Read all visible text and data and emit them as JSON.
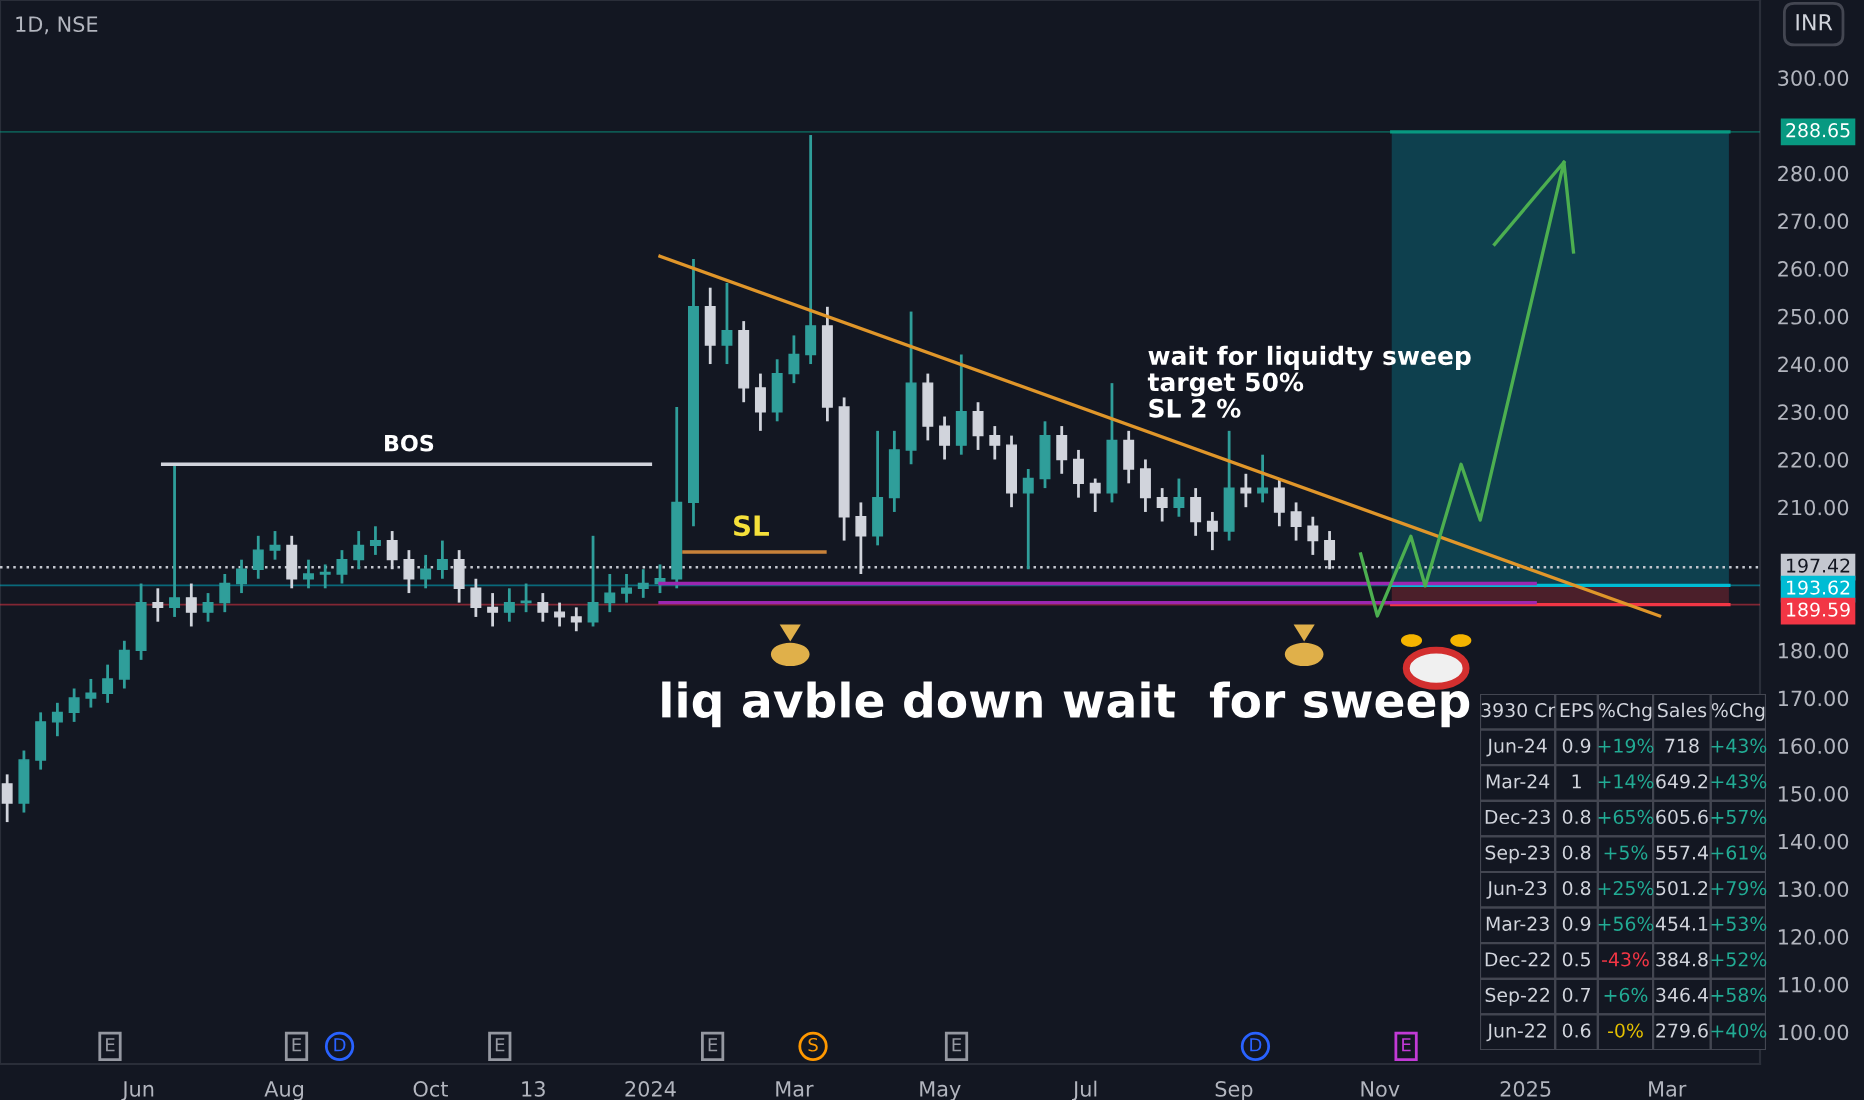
{
  "chart_data": [
    {
      "type": "candlestick",
      "title": "1D, NSE",
      "x": [
        "2023-04-07",
        "2023-04-14",
        "2023-04-21",
        "2023-04-28",
        "2023-05-05",
        "2023-05-12",
        "2023-05-19",
        "2023-05-26",
        "2023-06-02",
        "2023-06-09",
        "2023-06-16",
        "2023-06-23",
        "2023-06-30",
        "2023-07-07",
        "2023-07-14",
        "2023-07-21",
        "2023-07-28",
        "2023-08-04",
        "2023-08-11",
        "2023-08-18",
        "2023-08-25",
        "2023-09-01",
        "2023-09-08",
        "2023-09-15",
        "2023-09-22",
        "2023-09-29",
        "2023-10-06",
        "2023-10-13",
        "2023-10-20",
        "2023-10-27",
        "2023-11-03",
        "2023-11-10",
        "2023-11-17",
        "2023-11-24",
        "2023-12-01",
        "2023-12-08",
        "2023-12-15",
        "2023-12-22",
        "2023-12-29",
        "2024-01-05",
        "2024-01-12",
        "2024-01-19",
        "2024-01-26",
        "2024-02-02",
        "2024-02-09",
        "2024-02-16",
        "2024-02-23",
        "2024-03-01",
        "2024-03-08",
        "2024-03-15",
        "2024-03-22",
        "2024-03-29",
        "2024-04-05",
        "2024-04-12",
        "2024-04-19",
        "2024-04-26",
        "2024-05-03",
        "2024-05-10",
        "2024-05-17",
        "2024-05-24",
        "2024-05-31",
        "2024-06-07",
        "2024-06-14",
        "2024-06-21",
        "2024-06-28",
        "2024-07-05",
        "2024-07-12",
        "2024-07-19",
        "2024-07-26",
        "2024-08-02",
        "2024-08-09",
        "2024-08-16",
        "2024-08-23",
        "2024-08-30",
        "2024-09-06",
        "2024-09-13",
        "2024-09-20",
        "2024-09-27",
        "2024-10-04",
        "2024-10-11"
      ],
      "ohlc": [
        [
          152,
          154,
          144,
          148
        ],
        [
          148,
          159,
          146,
          157
        ],
        [
          157,
          167,
          155,
          165
        ],
        [
          165,
          169,
          162,
          167
        ],
        [
          167,
          172,
          165,
          170
        ],
        [
          170,
          174,
          168,
          171
        ],
        [
          171,
          177,
          169,
          174
        ],
        [
          174,
          182,
          172,
          180
        ],
        [
          180,
          194,
          178,
          190
        ],
        [
          190,
          193,
          186,
          189
        ],
        [
          189,
          219,
          187,
          191
        ],
        [
          191,
          194,
          185,
          188
        ],
        [
          188,
          192,
          186,
          190
        ],
        [
          190,
          196,
          188,
          194
        ],
        [
          194,
          199,
          192,
          197
        ],
        [
          197,
          204,
          195,
          201
        ],
        [
          201,
          205,
          199,
          202
        ],
        [
          202,
          204,
          193,
          195
        ],
        [
          195,
          199,
          193,
          196
        ],
        [
          196,
          198,
          193,
          196
        ],
        [
          196,
          201,
          194,
          199
        ],
        [
          199,
          205,
          197,
          202
        ],
        [
          202,
          206,
          200,
          203
        ],
        [
          203,
          205,
          197,
          199
        ],
        [
          199,
          201,
          192,
          195
        ],
        [
          195,
          200,
          193,
          197
        ],
        [
          197,
          203,
          195,
          199
        ],
        [
          199,
          201,
          190,
          193
        ],
        [
          193,
          195,
          187,
          189
        ],
        [
          189,
          192,
          185,
          188
        ],
        [
          188,
          193,
          186,
          190
        ],
        [
          190,
          194,
          188,
          190
        ],
        [
          190,
          192,
          186,
          188
        ],
        [
          188,
          190,
          185,
          187
        ],
        [
          187,
          189,
          184,
          186
        ],
        [
          186,
          204,
          185,
          190
        ],
        [
          190,
          196,
          188,
          192
        ],
        [
          192,
          196,
          190,
          193
        ],
        [
          193,
          197,
          191,
          194
        ],
        [
          194,
          198,
          192,
          195
        ],
        [
          195,
          231,
          193,
          211
        ],
        [
          211,
          262,
          206,
          252
        ],
        [
          252,
          256,
          240,
          244
        ],
        [
          244,
          257,
          240,
          247
        ],
        [
          247,
          249,
          232,
          235
        ],
        [
          235,
          238,
          226,
          230
        ],
        [
          230,
          241,
          228,
          238
        ],
        [
          238,
          246,
          236,
          242
        ],
        [
          242,
          288,
          240,
          248
        ],
        [
          248,
          252,
          228,
          231
        ],
        [
          231,
          233,
          203,
          208
        ],
        [
          208,
          211,
          196,
          204
        ],
        [
          204,
          226,
          202,
          212
        ],
        [
          212,
          226,
          209,
          222
        ],
        [
          222,
          251,
          219,
          236
        ],
        [
          236,
          238,
          224,
          227
        ],
        [
          227,
          229,
          220,
          223
        ],
        [
          223,
          242,
          221,
          230
        ],
        [
          230,
          232,
          222,
          225
        ],
        [
          225,
          227,
          220,
          223
        ],
        [
          223,
          225,
          210,
          213
        ],
        [
          213,
          218,
          197,
          216
        ],
        [
          216,
          228,
          214,
          225
        ],
        [
          225,
          227,
          217,
          220
        ],
        [
          220,
          222,
          212,
          215
        ],
        [
          215,
          216,
          209,
          213
        ],
        [
          213,
          236,
          211,
          224
        ],
        [
          224,
          226,
          215,
          218
        ],
        [
          218,
          220,
          209,
          212
        ],
        [
          212,
          214,
          207,
          210
        ],
        [
          210,
          216,
          208,
          212
        ],
        [
          212,
          214,
          204,
          207
        ],
        [
          207,
          209,
          201,
          205
        ],
        [
          205,
          226,
          203,
          214
        ],
        [
          214,
          217,
          210,
          213
        ],
        [
          213,
          221,
          211,
          214
        ],
        [
          214,
          216,
          206,
          209
        ],
        [
          209,
          211,
          203,
          206
        ],
        [
          206,
          208,
          200,
          203
        ],
        [
          203,
          205,
          197,
          199
        ]
      ],
      "colors": [
        "#d1d4dc",
        "#2f9e9a",
        "#2f9e9a",
        "#2f9e9a",
        "#2f9e9a",
        "#2f9e9a",
        "#2f9e9a",
        "#2f9e9a",
        "#2f9e9a",
        "#d1d4dc",
        "#2f9e9a",
        "#d1d4dc",
        "#2f9e9a",
        "#2f9e9a",
        "#2f9e9a",
        "#2f9e9a",
        "#2f9e9a",
        "#d1d4dc",
        "#2f9e9a",
        "#2f9e9a",
        "#2f9e9a",
        "#2f9e9a",
        "#2f9e9a",
        "#d1d4dc",
        "#d1d4dc",
        "#2f9e9a",
        "#2f9e9a",
        "#d1d4dc",
        "#d1d4dc",
        "#d1d4dc",
        "#2f9e9a",
        "#2f9e9a",
        "#d1d4dc",
        "#d1d4dc",
        "#d1d4dc",
        "#2f9e9a",
        "#2f9e9a",
        "#2f9e9a",
        "#2f9e9a",
        "#2f9e9a",
        "#2f9e9a",
        "#2f9e9a",
        "#d1d4dc",
        "#2f9e9a",
        "#d1d4dc",
        "#d1d4dc",
        "#2f9e9a",
        "#2f9e9a",
        "#2f9e9a",
        "#d1d4dc",
        "#d1d4dc",
        "#d1d4dc",
        "#2f9e9a",
        "#2f9e9a",
        "#2f9e9a",
        "#d1d4dc",
        "#d1d4dc",
        "#2f9e9a",
        "#d1d4dc",
        "#d1d4dc",
        "#d1d4dc",
        "#2f9e9a",
        "#2f9e9a",
        "#d1d4dc",
        "#d1d4dc",
        "#d1d4dc",
        "#2f9e9a",
        "#d1d4dc",
        "#d1d4dc",
        "#d1d4dc",
        "#2f9e9a",
        "#d1d4dc",
        "#d1d4dc",
        "#2f9e9a",
        "#d1d4dc",
        "#2f9e9a",
        "#d1d4dc",
        "#d1d4dc",
        "#d1d4dc",
        "#d1d4dc"
      ],
      "series": [
        {
          "type": "line",
          "x": [
            "2024-11-06",
            "2025-03-27"
          ],
          "values": [
            288.65,
            288.65
          ],
          "color": "#089981"
        },
        {
          "type": "line",
          "x": [
            "2024-11-06",
            "2025-03-27"
          ],
          "values": [
            193.62,
            193.62
          ],
          "color": "#00bcd4"
        },
        {
          "type": "line",
          "x": [
            "2024-11-06",
            "2025-03-27"
          ],
          "values": [
            189.59,
            189.59
          ],
          "color": "#f23645"
        },
        {
          "type": "line",
          "x": [
            "2024-01-05",
            "2025-01-05"
          ],
          "values": [
            194,
            194
          ],
          "color": "#9c27b0"
        },
        {
          "type": "line",
          "x": [
            "2024-01-05",
            "2025-01-05"
          ],
          "values": [
            190,
            190
          ],
          "color": "#9c27b0"
        },
        {
          "type": "line",
          "x": [
            "2023-06-11",
            "2024-01-01"
          ],
          "values": [
            219,
            219
          ],
          "color": "#d1d4dc"
        },
        {
          "type": "line",
          "x": [
            "2024-01-15",
            "2024-03-14"
          ],
          "values": [
            200.6,
            200.6
          ],
          "color": "#c8823a"
        },
        {
          "type": "line",
          "x": [
            "2024-01-05",
            "2025-02-26"
          ],
          "values": [
            262.6,
            187.2
          ],
          "color": "#e0962a"
        },
        {
          "type": "line",
          "x": [
            "2024-10-24",
            "2024-10-31",
            "2024-11-14",
            "2024-11-20",
            "2024-12-05",
            "2024-12-13",
            "2025-01-17",
            "2025-01-21"
          ],
          "values": [
            200.2,
            187.2,
            203.9,
            193.5,
            219,
            207.3,
            282.3,
            263.5
          ],
          "color": "#4caf50"
        },
        {
          "type": "line",
          "x": [
            "2024-12-19",
            "2025-01-17"
          ],
          "values": [
            265.1,
            282.3
          ],
          "color": "#4caf50"
        }
      ],
      "xlim": [
        "2023-04-04",
        "2025-04-09"
      ],
      "xticks": [
        {
          "value": "2023-06-01",
          "label": "Jun"
        },
        {
          "value": "2023-08-01",
          "label": "Aug"
        },
        {
          "value": "2023-10-01",
          "label": "Oct"
        },
        {
          "value": "2023-11-13",
          "label": "13"
        },
        {
          "value": "2024-01-01",
          "label": "2024"
        },
        {
          "value": "2024-03-01",
          "label": "Mar"
        },
        {
          "value": "2024-05-01",
          "label": "May"
        },
        {
          "value": "2024-07-01",
          "label": "Jul"
        },
        {
          "value": "2024-09-01",
          "label": "Sep"
        },
        {
          "value": "2024-11-01",
          "label": "Nov"
        },
        {
          "value": "2025-01-01",
          "label": "2025"
        },
        {
          "value": "2025-03-01",
          "label": "Mar"
        }
      ],
      "ylim": [
        93.3,
        316.3
      ],
      "yticks": [
        {
          "value": 100,
          "label": "100.00"
        },
        {
          "value": 110,
          "label": "110.00"
        },
        {
          "value": 120,
          "label": "120.00"
        },
        {
          "value": 130,
          "label": "130.00"
        },
        {
          "value": 140,
          "label": "140.00"
        },
        {
          "value": 150,
          "label": "150.00"
        },
        {
          "value": 160,
          "label": "160.00"
        },
        {
          "value": 170,
          "label": "170.00"
        },
        {
          "value": 180,
          "label": "180.00"
        },
        {
          "value": 210,
          "label": "210.00"
        },
        {
          "value": 220,
          "label": "220.00"
        },
        {
          "value": 230,
          "label": "230.00"
        },
        {
          "value": 240,
          "label": "240.00"
        },
        {
          "value": 250,
          "label": "250.00"
        },
        {
          "value": 260,
          "label": "260.00"
        },
        {
          "value": 270,
          "label": "270.00"
        },
        {
          "value": 280,
          "label": "280.00"
        },
        {
          "value": 300,
          "label": "300.00"
        }
      ],
      "ref_lines": [
        {
          "axis": "y",
          "value": 288.65,
          "label": "288.65",
          "color": "#089981"
        },
        {
          "axis": "y",
          "value": 197.42,
          "label": "197.42",
          "color": "#c4c7cf",
          "line_style": "dotted"
        },
        {
          "axis": "y",
          "value": 193.62,
          "label": "193.62",
          "color": "#00bcd4"
        },
        {
          "axis": "y",
          "value": 189.59,
          "label": "189.59",
          "color": "#f23645"
        }
      ],
      "annotations": [
        {
          "text": "BOS",
          "x": "2023-09-22",
          "y": 219
        },
        {
          "text": "SL",
          "x": "2024-02-12",
          "y": 200.6
        },
        "wait for liquidty sweep\ntarget 50%\nSL 2 %",
        "liq avble down wait  for sweep",
        "INR",
        {
          "text": "E",
          "x": "2023-05-20",
          "y": 97
        },
        {
          "text": "E",
          "x": "2023-08-06",
          "y": 97
        },
        {
          "text": "D",
          "x": "2023-08-24",
          "y": 97
        },
        {
          "text": "E",
          "x": "2023-10-30",
          "y": 97
        },
        {
          "text": "E",
          "x": "2024-01-27",
          "y": 97
        },
        {
          "text": "S",
          "x": "2024-03-09",
          "y": 97
        },
        {
          "text": "E",
          "x": "2024-05-08",
          "y": 97
        },
        {
          "text": "D",
          "x": "2024-09-10",
          "y": 97
        },
        {
          "text": "E",
          "x": "2024-11-12",
          "y": 97
        }
      ]
    },
    {
      "type": "other",
      "categories": [
        "3930 Cr",
        "EPS",
        "%Chg",
        "Sales",
        "%Chg"
      ],
      "cell_labels": [
        [
          "Jun-24",
          "0.9",
          "+19%",
          "718",
          "+43%"
        ],
        [
          "Mar-24",
          "1",
          "+14%",
          "649.2",
          "+43%"
        ],
        [
          "Dec-23",
          "0.8",
          "+65%",
          "605.6",
          "+57%"
        ],
        [
          "Sep-23",
          "0.8",
          "+5%",
          "557.4",
          "+61%"
        ],
        [
          "Jun-23",
          "0.8",
          "+25%",
          "501.2",
          "+79%"
        ],
        [
          "Mar-23",
          "0.9",
          "+56%",
          "454.1",
          "+53%"
        ],
        [
          "Dec-22",
          "0.5",
          "-43%",
          "384.8",
          "+52%"
        ],
        [
          "Sep-22",
          "0.7",
          "+6%",
          "346.4",
          "+58%"
        ],
        [
          "Jun-22",
          "0.6",
          "-0%",
          "279.6",
          "+40%"
        ]
      ],
      "colors": [
        [
          "#d1d4dc",
          "#d1d4dc",
          "#22ab94",
          "#d1d4dc",
          "#22ab94"
        ],
        [
          "#d1d4dc",
          "#d1d4dc",
          "#22ab94",
          "#d1d4dc",
          "#22ab94"
        ],
        [
          "#d1d4dc",
          "#d1d4dc",
          "#22ab94",
          "#d1d4dc",
          "#22ab94"
        ],
        [
          "#d1d4dc",
          "#d1d4dc",
          "#22ab94",
          "#d1d4dc",
          "#22ab94"
        ],
        [
          "#d1d4dc",
          "#d1d4dc",
          "#22ab94",
          "#d1d4dc",
          "#22ab94"
        ],
        [
          "#d1d4dc",
          "#d1d4dc",
          "#22ab94",
          "#d1d4dc",
          "#22ab94"
        ],
        [
          "#d1d4dc",
          "#d1d4dc",
          "#f23645",
          "#d1d4dc",
          "#22ab94"
        ],
        [
          "#d1d4dc",
          "#d1d4dc",
          "#22ab94",
          "#d1d4dc",
          "#22ab94"
        ],
        [
          "#d1d4dc",
          "#d1d4dc",
          "#e5c100",
          "#d1d4dc",
          "#22ab94"
        ]
      ]
    }
  ]
}
